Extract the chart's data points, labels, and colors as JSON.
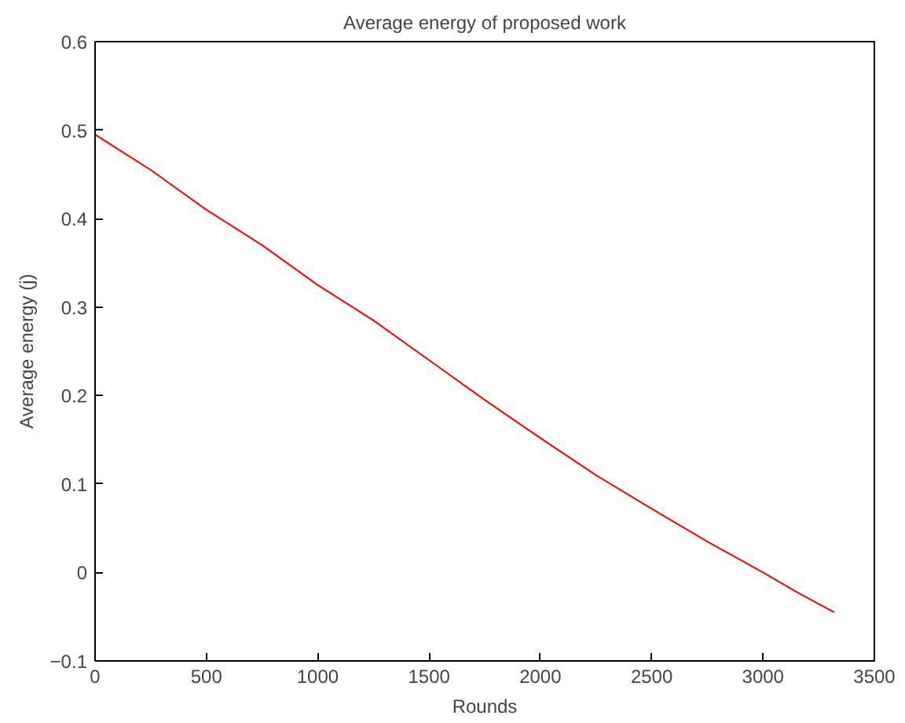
{
  "chart_data": {
    "type": "line",
    "title": "Average energy of proposed work",
    "xlabel": "Rounds",
    "ylabel": "Average energy (j)",
    "x": [
      0,
      250,
      500,
      750,
      1000,
      1250,
      1500,
      1750,
      2000,
      2250,
      2500,
      2750,
      3000,
      3150,
      3320
    ],
    "series": [
      {
        "color": "#ff0000",
        "values": [
          0.495,
          0.455,
          0.41,
          0.37,
          0.325,
          0.285,
          0.24,
          0.195,
          0.152,
          0.11,
          0.072,
          0.035,
          0.0,
          -0.022,
          -0.045
        ]
      }
    ],
    "xlim": [
      0,
      3500
    ],
    "xticks": [
      0,
      500,
      1000,
      1500,
      2000,
      2500,
      3000,
      3500
    ],
    "ylim": [
      -0.1,
      0.6
    ],
    "yticks": [
      -0.1,
      0,
      0.1,
      0.2,
      0.3,
      0.4,
      0.5,
      0.6
    ],
    "grid": false,
    "marker": "none",
    "line_style": "solid"
  }
}
